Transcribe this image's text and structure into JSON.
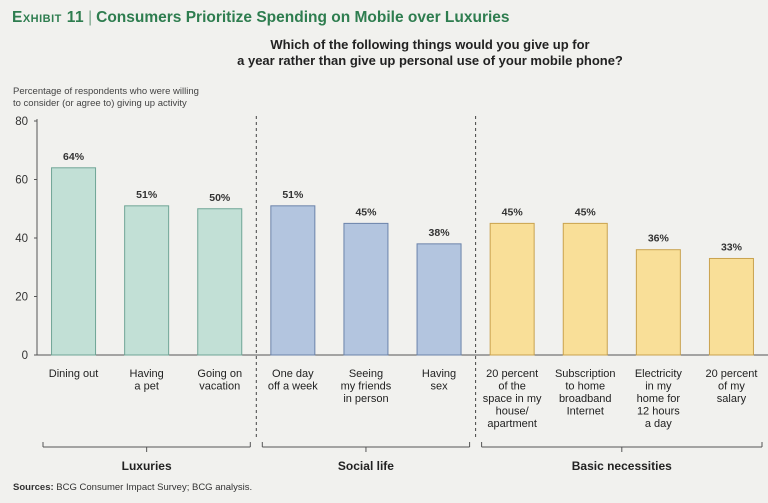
{
  "header": {
    "exhibit_label": "Exhibit 11",
    "exhibit_title": "Consumers Prioritize Spending on Mobile over Luxuries"
  },
  "question": {
    "line1": "Which of the following things would you give up for",
    "line2": "a year rather than give up personal use of your mobile phone?"
  },
  "y_axis_note": {
    "line1": "Percentage of respondents who were willing",
    "line2": "to consider (or agree to) giving up activity"
  },
  "source": {
    "label": "Sources:",
    "text": "BCG Consumer Impact Survey; BCG analysis."
  },
  "chart_data": {
    "type": "bar",
    "title": "Which of the following things would you give up for a year rather than give up personal use of your mobile phone?",
    "ylabel": "Percentage of respondents who were willing to consider (or agree to) giving up activity",
    "ylim": [
      0,
      80
    ],
    "yticks": [
      0,
      20,
      40,
      60,
      80
    ],
    "grid": false,
    "groups": [
      {
        "name": "Luxuries",
        "color": "#c2e0d6",
        "edge": "#6fa596",
        "bars": [
          {
            "label": [
              "Dining out"
            ],
            "value": 64
          },
          {
            "label": [
              "Having",
              "a pet"
            ],
            "value": 51
          },
          {
            "label": [
              "Going on",
              "vacation"
            ],
            "value": 50
          }
        ]
      },
      {
        "name": "Social life",
        "color": "#b3c5df",
        "edge": "#6b83aa",
        "bars": [
          {
            "label": [
              "One day",
              "off a week"
            ],
            "value": 51
          },
          {
            "label": [
              "Seeing",
              "my friends",
              "in person"
            ],
            "value": 45
          },
          {
            "label": [
              "Having",
              "sex"
            ],
            "value": 38
          }
        ]
      },
      {
        "name": "Basic necessities",
        "color": "#f9df98",
        "edge": "#c9a24e",
        "bars": [
          {
            "label": [
              "20 percent",
              "of the",
              "space in my",
              "house/",
              "apartment"
            ],
            "value": 45
          },
          {
            "label": [
              "Subscription",
              "to home",
              "broadband",
              "Internet"
            ],
            "value": 45
          },
          {
            "label": [
              "Electricity",
              "in my",
              "home for",
              "12 hours",
              "a day"
            ],
            "value": 36
          },
          {
            "label": [
              "20 percent",
              "of my",
              "salary"
            ],
            "value": 33
          }
        ]
      }
    ],
    "value_suffix": "%"
  }
}
